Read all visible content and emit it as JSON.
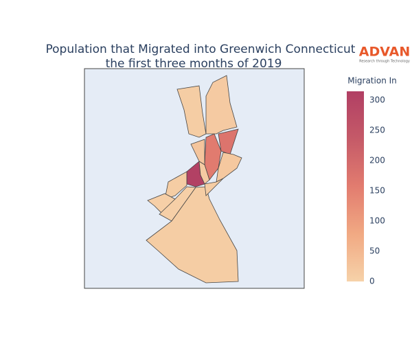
{
  "chart_data": {
    "type": "choropleth",
    "title": [
      "Population that Migrated into Greenwich Connecticut",
      "the first three months of 2019"
    ],
    "logo": {
      "name": "ADVAN",
      "tagline": "Research through Technology"
    },
    "colorbar": {
      "title": "Migration In",
      "clim": [
        0,
        315
      ],
      "ticks": [
        0,
        50,
        100,
        150,
        200,
        250,
        300
      ],
      "colorscale": [
        "#f6d2a9",
        "#f1a983",
        "#e27c6f",
        "#c55a68",
        "#b13f64"
      ]
    },
    "values": [
      10,
      15,
      175,
      160,
      20,
      25,
      310,
      15,
      10,
      5,
      5,
      10,
      12
    ]
  }
}
